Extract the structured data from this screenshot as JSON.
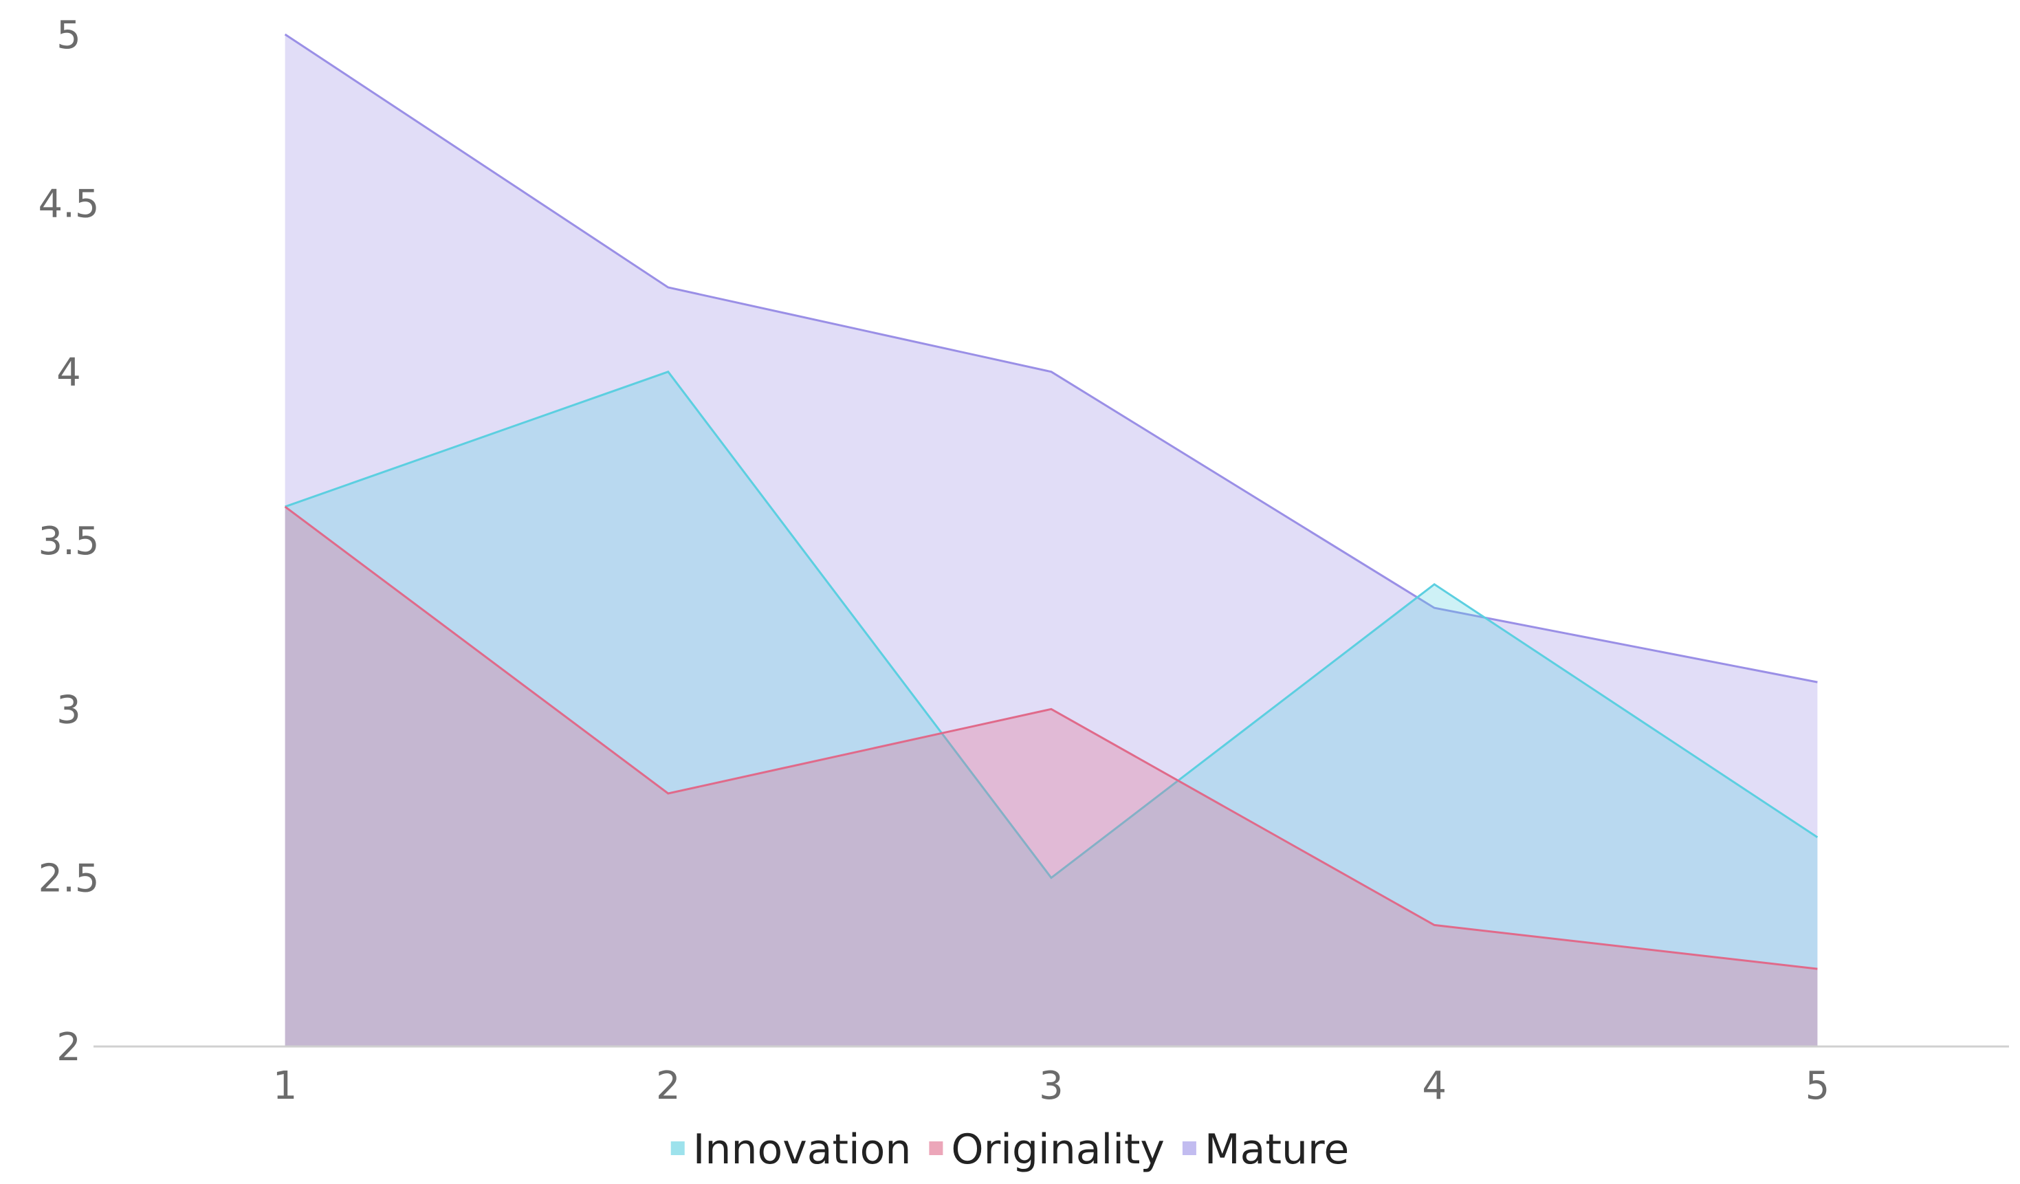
{
  "chart_data": {
    "type": "area",
    "x": [
      1,
      2,
      3,
      4,
      5
    ],
    "xticks": [
      "1",
      "2",
      "3",
      "4",
      "5"
    ],
    "yticks": [
      "2",
      "2.5",
      "3",
      "3.5",
      "4",
      "4.5",
      "5"
    ],
    "xlim": [
      0.5,
      5.5
    ],
    "ylim": [
      2,
      5
    ],
    "grid": false,
    "legend_position": "bottom-center",
    "series": [
      {
        "name": "Mature",
        "values": [
          5,
          4.25,
          4,
          3.3,
          3.08
        ],
        "color": "#9a8fe6",
        "fill_opacity": 0.3
      },
      {
        "name": "Innovation",
        "values": [
          3.6,
          4,
          2.5,
          3.37,
          2.62
        ],
        "color": "#5ccfe0",
        "fill_opacity": 0.3
      },
      {
        "name": "Originality",
        "values": [
          3.6,
          2.75,
          3,
          2.36,
          2.23
        ],
        "color": "#e06a8a",
        "fill_opacity": 0.3
      }
    ],
    "legend": [
      {
        "name": "Innovation",
        "color": "#5ccfe0"
      },
      {
        "name": "Originality",
        "color": "#e06a8a"
      },
      {
        "name": "Mature",
        "color": "#9a8fe6"
      }
    ]
  }
}
